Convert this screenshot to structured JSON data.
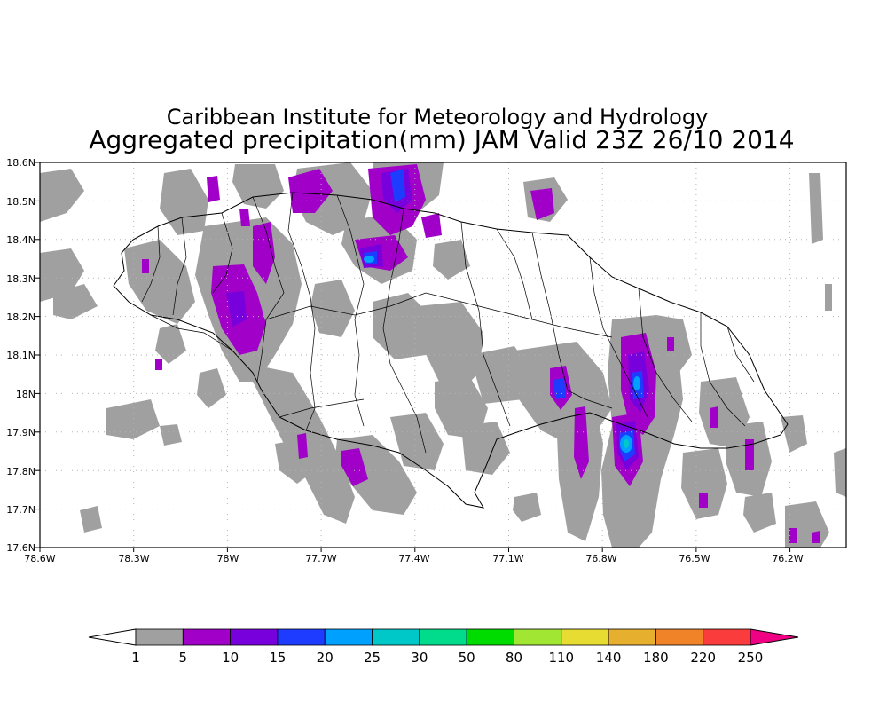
{
  "title": {
    "line1": "Caribbean Institute for Meteorology and Hydrology",
    "line2": "Aggregated precipitation(mm) JAM Valid 23Z 26/10 2014"
  },
  "axes": {
    "x_ticks": [
      "78.6W",
      "78.3W",
      "78W",
      "77.7W",
      "77.4W",
      "77.1W",
      "76.8W",
      "76.5W",
      "76.2W"
    ],
    "y_ticks": [
      "18.6N",
      "18.5N",
      "18.4N",
      "18.3N",
      "18.2N",
      "18.1N",
      "18N",
      "17.9N",
      "17.8N",
      "17.7N",
      "17.6N"
    ]
  },
  "colorbar": {
    "labels": [
      "1",
      "5",
      "10",
      "15",
      "20",
      "25",
      "30",
      "50",
      "80",
      "110",
      "140",
      "180",
      "220",
      "250"
    ],
    "colors": [
      "#a0a0a0",
      "#a000c8",
      "#7800dc",
      "#1e3cff",
      "#00a0ff",
      "#00c8c8",
      "#00dc8c",
      "#00dc00",
      "#a0e632",
      "#e6dc32",
      "#e6af2d",
      "#f08228",
      "#fa3c3c",
      "#f00082"
    ],
    "low_color": "#ffffff",
    "high_color": "#f00082"
  },
  "colors": {
    "light": "#a0a0a0",
    "moderate": "#a000c8",
    "heavy": "#7800dc",
    "intense": "#1e3cff",
    "peak": "#00a0ff"
  }
}
